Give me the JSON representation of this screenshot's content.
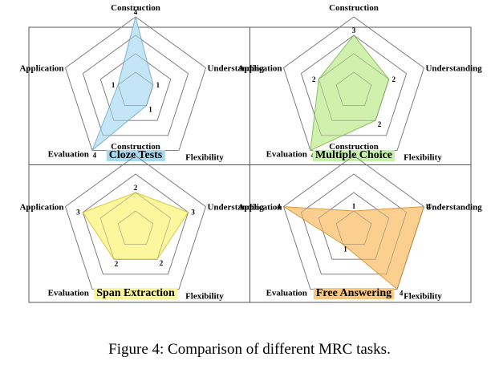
{
  "caption": "Figure 4: Comparison of different MRC tasks.",
  "chart_data": [
    {
      "type": "radar",
      "title": "Cloze Tests",
      "title_bg": "#a7d9ee",
      "fill": "#b8e0f5",
      "stroke": "#7fb3d0",
      "axes": [
        "Construction",
        "Understanding",
        "Flexibility",
        "Evaluation",
        "Application"
      ],
      "values": [
        4,
        1,
        1,
        4,
        1
      ],
      "rlim": [
        0,
        4
      ],
      "rings": [
        1,
        2,
        3,
        4
      ]
    },
    {
      "type": "radar",
      "title": "Multiple Choice",
      "title_bg": "#c4f0a8",
      "fill": "#c8ef9f",
      "stroke": "#8ac05d",
      "axes": [
        "Construction",
        "Understanding",
        "Flexibility",
        "Evaluation",
        "Application"
      ],
      "values": [
        3,
        2,
        2,
        4,
        2
      ],
      "rlim": [
        0,
        4
      ],
      "rings": [
        1,
        2,
        3,
        4
      ]
    },
    {
      "type": "radar",
      "title": "Span Extraction",
      "title_bg": "#fbf59a",
      "fill": "#fcf58c",
      "stroke": "#d8cc40",
      "axes": [
        "Construction",
        "Understanding",
        "Flexibility",
        "Evaluation",
        "Application"
      ],
      "values": [
        2,
        3,
        2,
        2,
        3
      ],
      "rlim": [
        0,
        4
      ],
      "rings": [
        1,
        2,
        3,
        4
      ]
    },
    {
      "type": "radar",
      "title": "Free Answering",
      "title_bg": "#f9c77f",
      "fill": "#f9c77c",
      "stroke": "#d99a3c",
      "axes": [
        "Construction",
        "Understanding",
        "Flexibility",
        "Evaluation",
        "Application"
      ],
      "values": [
        1,
        4,
        4,
        1,
        4
      ],
      "rlim": [
        0,
        4
      ],
      "rings": [
        1,
        2,
        3,
        4
      ]
    }
  ]
}
